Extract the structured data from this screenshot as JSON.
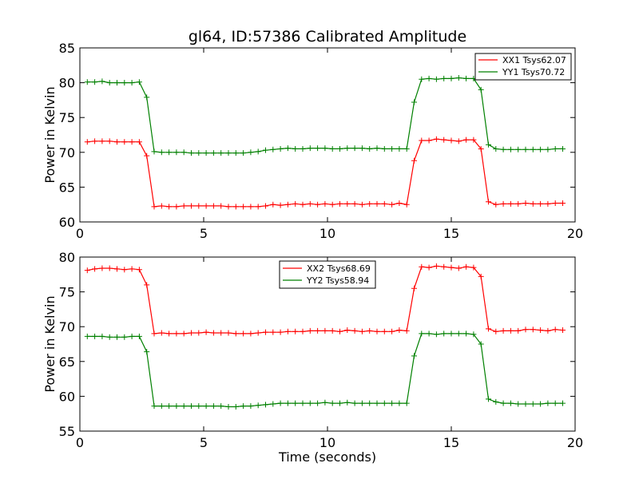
{
  "chart_data": [
    {
      "type": "line",
      "title": "gl64, ID:57386 Calibrated Amplitude",
      "xlabel": "",
      "ylabel": "Power in Kelvin",
      "xlim": [
        0,
        20
      ],
      "ylim": [
        60,
        85
      ],
      "xticks": [
        0,
        5,
        10,
        15,
        20
      ],
      "yticks": [
        60,
        65,
        70,
        75,
        80,
        85
      ],
      "legend": "top-right",
      "x": [
        0.3,
        0.6,
        0.9,
        1.2,
        1.5,
        1.8,
        2.1,
        2.4,
        2.7,
        3.0,
        3.3,
        3.6,
        3.9,
        4.2,
        4.5,
        4.8,
        5.1,
        5.4,
        5.7,
        6.0,
        6.3,
        6.6,
        6.9,
        7.2,
        7.5,
        7.8,
        8.1,
        8.4,
        8.7,
        9.0,
        9.3,
        9.6,
        9.9,
        10.2,
        10.5,
        10.8,
        11.1,
        11.4,
        11.7,
        12.0,
        12.3,
        12.6,
        12.9,
        13.2,
        13.5,
        13.8,
        14.1,
        14.4,
        14.7,
        15.0,
        15.3,
        15.6,
        15.9,
        16.2,
        16.5,
        16.8,
        17.1,
        17.4,
        17.7,
        18.0,
        18.3,
        18.6,
        18.9,
        19.2,
        19.5
      ],
      "series": [
        {
          "name": "XX1 Tsys62.07",
          "color": "#ff0000",
          "values": [
            71.5,
            71.6,
            71.6,
            71.6,
            71.5,
            71.5,
            71.5,
            71.5,
            69.5,
            62.2,
            62.3,
            62.2,
            62.2,
            62.3,
            62.3,
            62.3,
            62.3,
            62.3,
            62.3,
            62.2,
            62.2,
            62.2,
            62.2,
            62.2,
            62.3,
            62.5,
            62.4,
            62.5,
            62.6,
            62.5,
            62.6,
            62.5,
            62.6,
            62.5,
            62.6,
            62.6,
            62.6,
            62.5,
            62.6,
            62.6,
            62.6,
            62.5,
            62.7,
            62.5,
            68.8,
            71.7,
            71.7,
            71.9,
            71.8,
            71.7,
            71.6,
            71.8,
            71.8,
            70.5,
            62.9,
            62.5,
            62.6,
            62.6,
            62.6,
            62.7,
            62.6,
            62.6,
            62.6,
            62.7,
            62.7
          ]
        },
        {
          "name": "YY1 Tsys70.72",
          "color": "#008000",
          "values": [
            80.1,
            80.1,
            80.2,
            80.0,
            80.0,
            80.0,
            80.0,
            80.1,
            77.9,
            70.1,
            70.0,
            70.0,
            70.0,
            70.0,
            69.9,
            69.9,
            69.9,
            69.9,
            69.9,
            69.9,
            69.9,
            69.9,
            70.0,
            70.1,
            70.3,
            70.4,
            70.5,
            70.6,
            70.5,
            70.5,
            70.6,
            70.6,
            70.6,
            70.5,
            70.5,
            70.6,
            70.6,
            70.6,
            70.5,
            70.6,
            70.5,
            70.5,
            70.5,
            70.5,
            77.2,
            80.5,
            80.6,
            80.5,
            80.6,
            80.6,
            80.7,
            80.6,
            80.6,
            79.0,
            71.1,
            70.5,
            70.4,
            70.4,
            70.4,
            70.4,
            70.4,
            70.4,
            70.4,
            70.5,
            70.5
          ]
        }
      ]
    },
    {
      "type": "line",
      "title": "",
      "xlabel": "Time (seconds)",
      "ylabel": "Power in Kelvin",
      "xlim": [
        0,
        20
      ],
      "ylim": [
        55,
        80
      ],
      "xticks": [
        0,
        5,
        10,
        15,
        20
      ],
      "yticks": [
        55,
        60,
        65,
        70,
        75,
        80
      ],
      "legend": "top-center",
      "x": [
        0.3,
        0.6,
        0.9,
        1.2,
        1.5,
        1.8,
        2.1,
        2.4,
        2.7,
        3.0,
        3.3,
        3.6,
        3.9,
        4.2,
        4.5,
        4.8,
        5.1,
        5.4,
        5.7,
        6.0,
        6.3,
        6.6,
        6.9,
        7.2,
        7.5,
        7.8,
        8.1,
        8.4,
        8.7,
        9.0,
        9.3,
        9.6,
        9.9,
        10.2,
        10.5,
        10.8,
        11.1,
        11.4,
        11.7,
        12.0,
        12.3,
        12.6,
        12.9,
        13.2,
        13.5,
        13.8,
        14.1,
        14.4,
        14.7,
        15.0,
        15.3,
        15.6,
        15.9,
        16.2,
        16.5,
        16.8,
        17.1,
        17.4,
        17.7,
        18.0,
        18.3,
        18.6,
        18.9,
        19.2,
        19.5
      ],
      "series": [
        {
          "name": "XX2 Tsys68.69",
          "color": "#ff0000",
          "values": [
            78.1,
            78.3,
            78.4,
            78.4,
            78.3,
            78.2,
            78.3,
            78.2,
            76.0,
            69.0,
            69.1,
            69.0,
            69.0,
            69.0,
            69.1,
            69.1,
            69.2,
            69.1,
            69.1,
            69.1,
            69.0,
            69.0,
            69.0,
            69.1,
            69.2,
            69.2,
            69.2,
            69.3,
            69.3,
            69.3,
            69.4,
            69.4,
            69.4,
            69.4,
            69.3,
            69.5,
            69.4,
            69.3,
            69.4,
            69.3,
            69.3,
            69.3,
            69.5,
            69.4,
            75.5,
            78.6,
            78.5,
            78.7,
            78.6,
            78.5,
            78.4,
            78.6,
            78.5,
            77.2,
            69.7,
            69.3,
            69.4,
            69.4,
            69.4,
            69.6,
            69.6,
            69.5,
            69.4,
            69.6,
            69.5
          ]
        },
        {
          "name": "YY2 Tsys58.94",
          "color": "#008000",
          "values": [
            68.6,
            68.6,
            68.6,
            68.5,
            68.5,
            68.5,
            68.6,
            68.6,
            66.4,
            58.6,
            58.6,
            58.6,
            58.6,
            58.6,
            58.6,
            58.6,
            58.6,
            58.6,
            58.6,
            58.5,
            58.5,
            58.6,
            58.6,
            58.7,
            58.8,
            58.9,
            59.0,
            59.0,
            59.0,
            59.0,
            59.0,
            59.0,
            59.1,
            59.0,
            59.0,
            59.1,
            59.0,
            59.0,
            59.0,
            59.0,
            59.0,
            59.0,
            59.0,
            59.0,
            65.8,
            69.0,
            69.0,
            68.9,
            69.0,
            69.0,
            69.0,
            69.0,
            68.9,
            67.5,
            59.6,
            59.2,
            59.0,
            59.0,
            58.9,
            58.9,
            58.9,
            58.9,
            59.0,
            59.0,
            59.0
          ]
        }
      ]
    }
  ]
}
